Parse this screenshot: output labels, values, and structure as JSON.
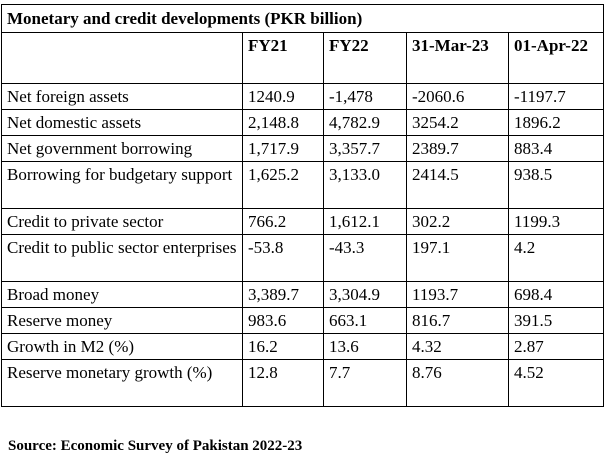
{
  "table": {
    "title": "Monetary and credit developments (PKR billion)",
    "columns": [
      "",
      "FY21",
      "FY22",
      "31-Mar-23",
      "01-Apr-22"
    ],
    "rows": [
      {
        "label": "Net foreign assets",
        "values": [
          "1240.9",
          "-1,478",
          "-2060.6",
          "-1197.7"
        ]
      },
      {
        "label": "Net domestic assets",
        "values": [
          "2,148.8",
          "4,782.9",
          "3254.2",
          "1896.2"
        ]
      },
      {
        "label": "Net government borrowing",
        "values": [
          "1,717.9",
          "3,357.7",
          "2389.7",
          "883.4"
        ]
      },
      {
        "label": "Borrowing for budgetary support",
        "values": [
          "1,625.2",
          "3,133.0",
          "2414.5",
          "938.5"
        ]
      },
      {
        "label": "Credit to private sector",
        "values": [
          "766.2",
          "1,612.1",
          "302.2",
          "1199.3"
        ]
      },
      {
        "label": "Credit to public sector enterprises",
        "values": [
          "-53.8",
          "-43.3",
          "197.1",
          "4.2"
        ]
      },
      {
        "label": "Broad money",
        "values": [
          "3,389.7",
          "3,304.9",
          "1193.7",
          "698.4"
        ]
      },
      {
        "label": "Reserve money",
        "values": [
          "983.6",
          "663.1",
          "816.7",
          "391.5"
        ]
      },
      {
        "label": "Growth in M2 (%)",
        "values": [
          "16.2",
          "13.6",
          "4.32",
          "2.87"
        ]
      },
      {
        "label": "Reserve monetary growth (%)",
        "values": [
          "12.8",
          "7.7",
          "8.76",
          "4.52"
        ]
      }
    ]
  },
  "source": "Source: Economic Survey of Pakistan 2022-23"
}
